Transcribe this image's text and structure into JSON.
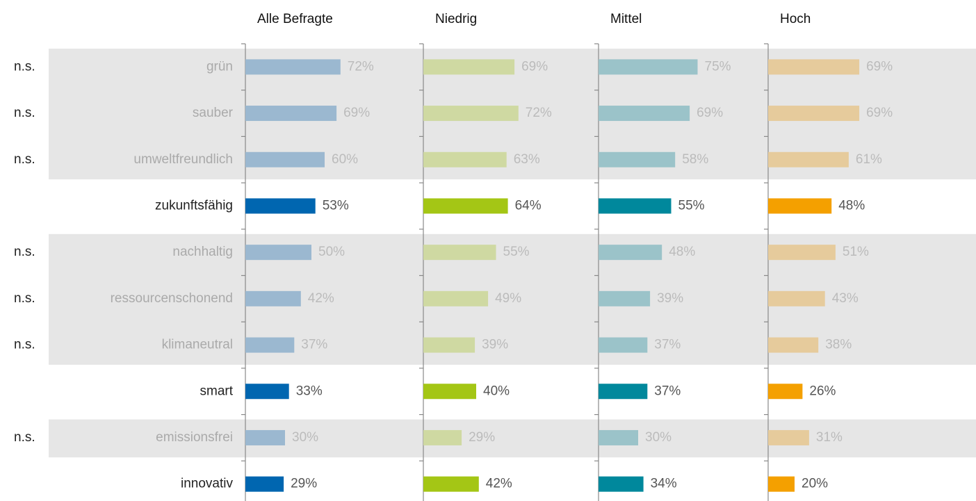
{
  "chart_data": {
    "type": "bar",
    "orientation": "horizontal",
    "categories": [
      "grün",
      "sauber",
      "umweltfreundlich",
      "zukunftsfähig",
      "nachhaltig",
      "ressourcenschonend",
      "klimaneutral",
      "smart",
      "emissionsfrei",
      "innovativ"
    ],
    "significance": [
      "n.s.",
      "n.s.",
      "n.s.",
      null,
      "n.s.",
      "n.s.",
      "n.s.",
      null,
      "n.s.",
      null
    ],
    "xlim": [
      0,
      100
    ],
    "series": [
      {
        "name": "Alle Befragte",
        "color": "#0066b0",
        "faded_color": "#9bb8d0",
        "values": [
          72,
          69,
          60,
          53,
          50,
          42,
          37,
          33,
          30,
          29
        ],
        "value_labels": [
          "72%",
          "69%",
          "60%",
          "53%",
          "50%",
          "42%",
          "37%",
          "33%",
          "30%",
          "29%"
        ]
      },
      {
        "name": "Niedrig",
        "color": "#a4c615",
        "faded_color": "#cfd9a2",
        "values": [
          69,
          72,
          63,
          64,
          55,
          49,
          39,
          40,
          29,
          42
        ],
        "value_labels": [
          "69%",
          "72%",
          "63%",
          "64%",
          "55%",
          "49%",
          "39%",
          "40%",
          "29%",
          "42%"
        ]
      },
      {
        "name": "Mittel",
        "color": "#00889c",
        "faded_color": "#9bc3c9",
        "values": [
          75,
          69,
          58,
          55,
          48,
          39,
          37,
          37,
          30,
          34
        ],
        "value_labels": [
          "75%",
          "69%",
          "58%",
          "55%",
          "48%",
          "39%",
          "37%",
          "37%",
          "30%",
          "34%"
        ]
      },
      {
        "name": "Hoch",
        "color": "#f4a000",
        "faded_color": "#e6cb9c",
        "values": [
          69,
          69,
          61,
          48,
          51,
          43,
          38,
          26,
          31,
          20
        ],
        "value_labels": [
          "69%",
          "69%",
          "61%",
          "48%",
          "51%",
          "43%",
          "38%",
          "26%",
          "31%",
          "20%"
        ]
      }
    ]
  }
}
